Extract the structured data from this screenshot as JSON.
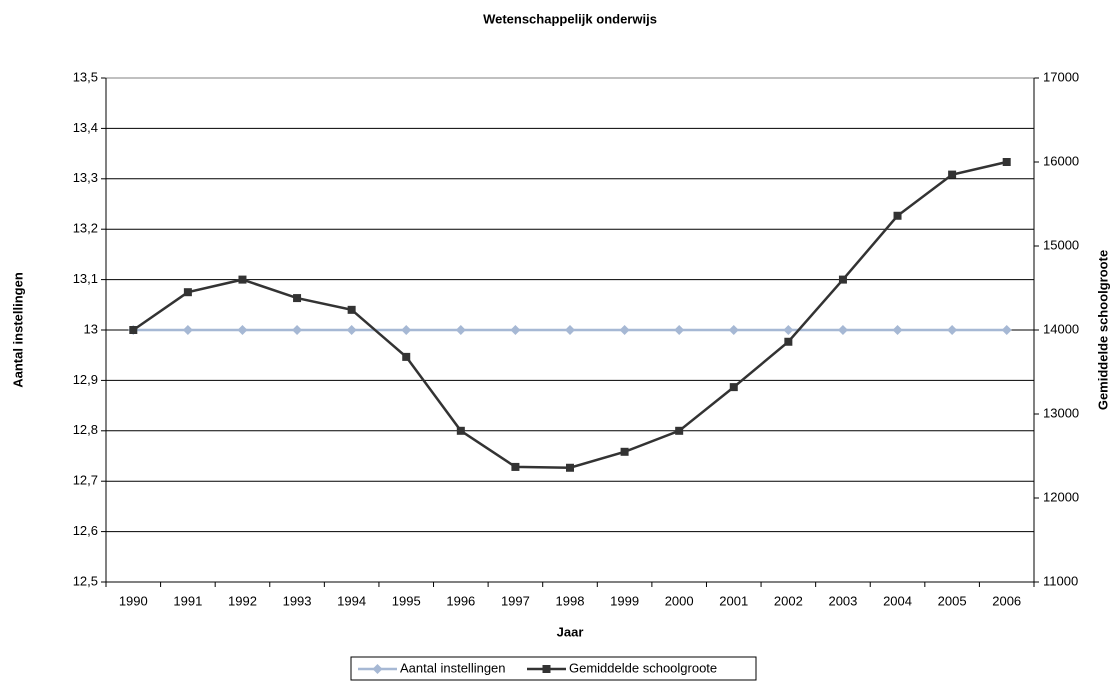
{
  "chart_data": {
    "type": "line",
    "title": "Wetenschappelijk onderwijs",
    "x_label": "Jaar",
    "y_label": "Aantal instellingen",
    "y2_label": "Gemiddelde schoolgroote",
    "categories": [
      "1990",
      "1991",
      "1992",
      "1993",
      "1994",
      "1995",
      "1996",
      "1997",
      "1998",
      "1999",
      "2000",
      "2001",
      "2002",
      "2003",
      "2004",
      "2005",
      "2006"
    ],
    "ylim": [
      12.5,
      13.5
    ],
    "yticks": [
      {
        "value": 12.5,
        "label": "12,5"
      },
      {
        "value": 12.6,
        "label": "12,6"
      },
      {
        "value": 12.7,
        "label": "12,7"
      },
      {
        "value": 12.8,
        "label": "12,8"
      },
      {
        "value": 12.9,
        "label": "12,9"
      },
      13,
      {
        "value": 13.1,
        "label": "13,1"
      },
      {
        "value": 13.2,
        "label": "13,2"
      },
      {
        "value": 13.3,
        "label": "13,3"
      },
      {
        "value": 13.4,
        "label": "13,4"
      },
      {
        "value": 13.5,
        "label": "13,5"
      }
    ],
    "y2lim": [
      11000,
      17000
    ],
    "y2ticks": [
      11000,
      12000,
      13000,
      14000,
      15000,
      16000,
      17000
    ],
    "grid": true,
    "legend": "bottom",
    "series": [
      {
        "name": "Aantal instellingen",
        "color": "#a6b8d4",
        "marker": "diamond",
        "axis": "y",
        "values": [
          13,
          13,
          13,
          13,
          13,
          13,
          13,
          13,
          13,
          13,
          13,
          13,
          13,
          13,
          13,
          13,
          13
        ]
      },
      {
        "name": "Gemiddelde schoolgroote",
        "color": "#333333",
        "marker": "square",
        "axis": "y2",
        "values": [
          14000,
          14450,
          14600,
          14380,
          14240,
          13680,
          12800,
          12370,
          12360,
          12550,
          12800,
          13320,
          13860,
          14600,
          15360,
          15850,
          16000
        ]
      }
    ]
  }
}
